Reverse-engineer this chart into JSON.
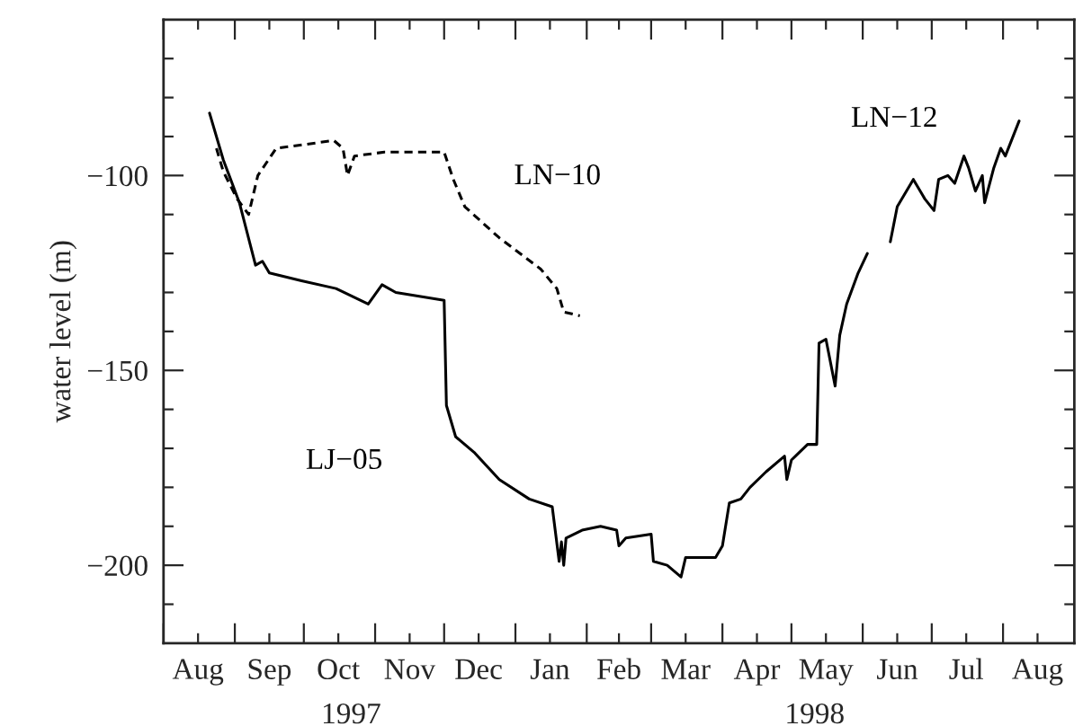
{
  "chart_data": {
    "type": "line",
    "ylabel": "water level (m)",
    "xlim": [
      "1997-08-01",
      "1998-09-01"
    ],
    "ylim": [
      -220,
      -60
    ],
    "xticks": [
      {
        "value": "1997-08-01",
        "label": null
      },
      {
        "value": "1997-08-16",
        "label": "Aug"
      },
      {
        "value": "1997-09-01",
        "label": null
      },
      {
        "value": "1997-09-16",
        "label": "Sep"
      },
      {
        "value": "1997-10-01",
        "label": null
      },
      {
        "value": "1997-10-16",
        "label": "Oct"
      },
      {
        "value": "1997-11-01",
        "label": null
      },
      {
        "value": "1997-11-16",
        "label": "Nov"
      },
      {
        "value": "1997-12-01",
        "label": null
      },
      {
        "value": "1997-12-16",
        "label": "Dec"
      },
      {
        "value": "1998-01-01",
        "label": null
      },
      {
        "value": "1998-01-16",
        "label": "Jan"
      },
      {
        "value": "1998-02-01",
        "label": null
      },
      {
        "value": "1998-02-15",
        "label": "Feb"
      },
      {
        "value": "1998-03-01",
        "label": null
      },
      {
        "value": "1998-03-16",
        "label": "Mar"
      },
      {
        "value": "1998-04-01",
        "label": null
      },
      {
        "value": "1998-04-16",
        "label": "Apr"
      },
      {
        "value": "1998-05-01",
        "label": null
      },
      {
        "value": "1998-05-16",
        "label": "May"
      },
      {
        "value": "1998-06-01",
        "label": null
      },
      {
        "value": "1998-06-16",
        "label": "Jun"
      },
      {
        "value": "1998-07-01",
        "label": null
      },
      {
        "value": "1998-07-16",
        "label": "Jul"
      },
      {
        "value": "1998-08-01",
        "label": null
      },
      {
        "value": "1998-08-16",
        "label": "Aug"
      }
    ],
    "yticks": [
      {
        "value": -210,
        "label": null
      },
      {
        "value": -200,
        "label": "−200"
      },
      {
        "value": -190,
        "label": null
      },
      {
        "value": -180,
        "label": null
      },
      {
        "value": -170,
        "label": null
      },
      {
        "value": -160,
        "label": null
      },
      {
        "value": -150,
        "label": "−150"
      },
      {
        "value": -140,
        "label": null
      },
      {
        "value": -130,
        "label": null
      },
      {
        "value": -120,
        "label": null
      },
      {
        "value": -110,
        "label": null
      },
      {
        "value": -100,
        "label": "−100"
      },
      {
        "value": -90,
        "label": null
      },
      {
        "value": -80,
        "label": null
      },
      {
        "value": -70,
        "label": null
      }
    ],
    "grid": false,
    "legend": false,
    "series": [
      {
        "name": "LJ−05",
        "color": "#000000",
        "line_style": "solid",
        "x": [
          "1997-08-21",
          "1997-08-27",
          "1997-09-03",
          "1997-09-10",
          "1997-09-13",
          "1997-09-16",
          "1997-09-30",
          "1997-10-15",
          "1997-10-29",
          "1997-11-04",
          "1997-11-10",
          "1997-12-01",
          "1997-12-02",
          "1997-12-06",
          "1997-12-14",
          "1997-12-25",
          "1998-01-07",
          "1998-01-17",
          "1998-01-20",
          "1998-01-21",
          "1998-01-22",
          "1998-01-23",
          "1998-01-30",
          "1998-02-07",
          "1998-02-14",
          "1998-02-15",
          "1998-02-18",
          "1998-03-01",
          "1998-03-02",
          "1998-03-08",
          "1998-03-14",
          "1998-03-16",
          "1998-03-29",
          "1998-04-01",
          "1998-04-04",
          "1998-04-09",
          "1998-04-13",
          "1998-04-20",
          "1998-04-28",
          "1998-04-29",
          "1998-05-01",
          "1998-05-08",
          "1998-05-12",
          "1998-05-13",
          "1998-05-16",
          "1998-05-20",
          "1998-05-22",
          "1998-05-25",
          "1998-05-30",
          "1998-06-03"
        ],
        "values": [
          -84,
          -96,
          -107,
          -123,
          -122,
          -125,
          -127,
          -129,
          -133,
          -128,
          -130,
          -132,
          -159,
          -167,
          -171,
          -178,
          -183,
          -185,
          -199,
          -194,
          -200,
          -193,
          -191,
          -190,
          -191,
          -195,
          -193,
          -192,
          -199,
          -200,
          -203,
          -198,
          -198,
          -195,
          -184,
          -183,
          -180,
          -176,
          -172,
          -178,
          -173,
          -169,
          -169,
          -143,
          -142,
          -154,
          -141,
          -133,
          -125,
          -120
        ]
      },
      {
        "name": "LN−12",
        "color": "#000000",
        "line_style": "solid",
        "x": [
          "1998-06-13",
          "1998-06-16",
          "1998-06-23",
          "1998-06-27",
          "1998-06-28",
          "1998-07-02",
          "1998-07-04",
          "1998-07-08",
          "1998-07-11",
          "1998-07-15",
          "1998-07-17",
          "1998-07-20",
          "1998-07-23",
          "1998-07-24",
          "1998-07-28",
          "1998-07-31",
          "1998-08-02",
          "1998-08-08"
        ],
        "values": [
          -117,
          -108,
          -101,
          -105,
          -106,
          -109,
          -101,
          -100,
          -102,
          -95,
          -98,
          -104,
          -100,
          -107,
          -98,
          -93,
          -95,
          -86
        ]
      },
      {
        "name": "LN−10",
        "color": "#000000",
        "line_style": "dashed",
        "x": [
          "1997-08-24",
          "1997-08-27",
          "1997-09-02",
          "1997-09-07",
          "1997-09-11",
          "1997-09-19",
          "1997-10-02",
          "1997-10-14",
          "1997-10-18",
          "1997-10-20",
          "1997-10-23",
          "1997-11-05",
          "1997-12-01",
          "1997-12-05",
          "1997-12-10",
          "1997-12-25",
          "1998-01-12",
          "1998-01-19",
          "1998-01-22",
          "1998-01-29"
        ],
        "values": [
          -93,
          -99,
          -106,
          -110,
          -100,
          -93,
          -92,
          -91,
          -93,
          -100,
          -95,
          -94,
          -94,
          -101,
          -108,
          -116,
          -124,
          -129,
          -135,
          -136
        ]
      }
    ],
    "annotations": [
      "1997",
      "1998"
    ]
  }
}
